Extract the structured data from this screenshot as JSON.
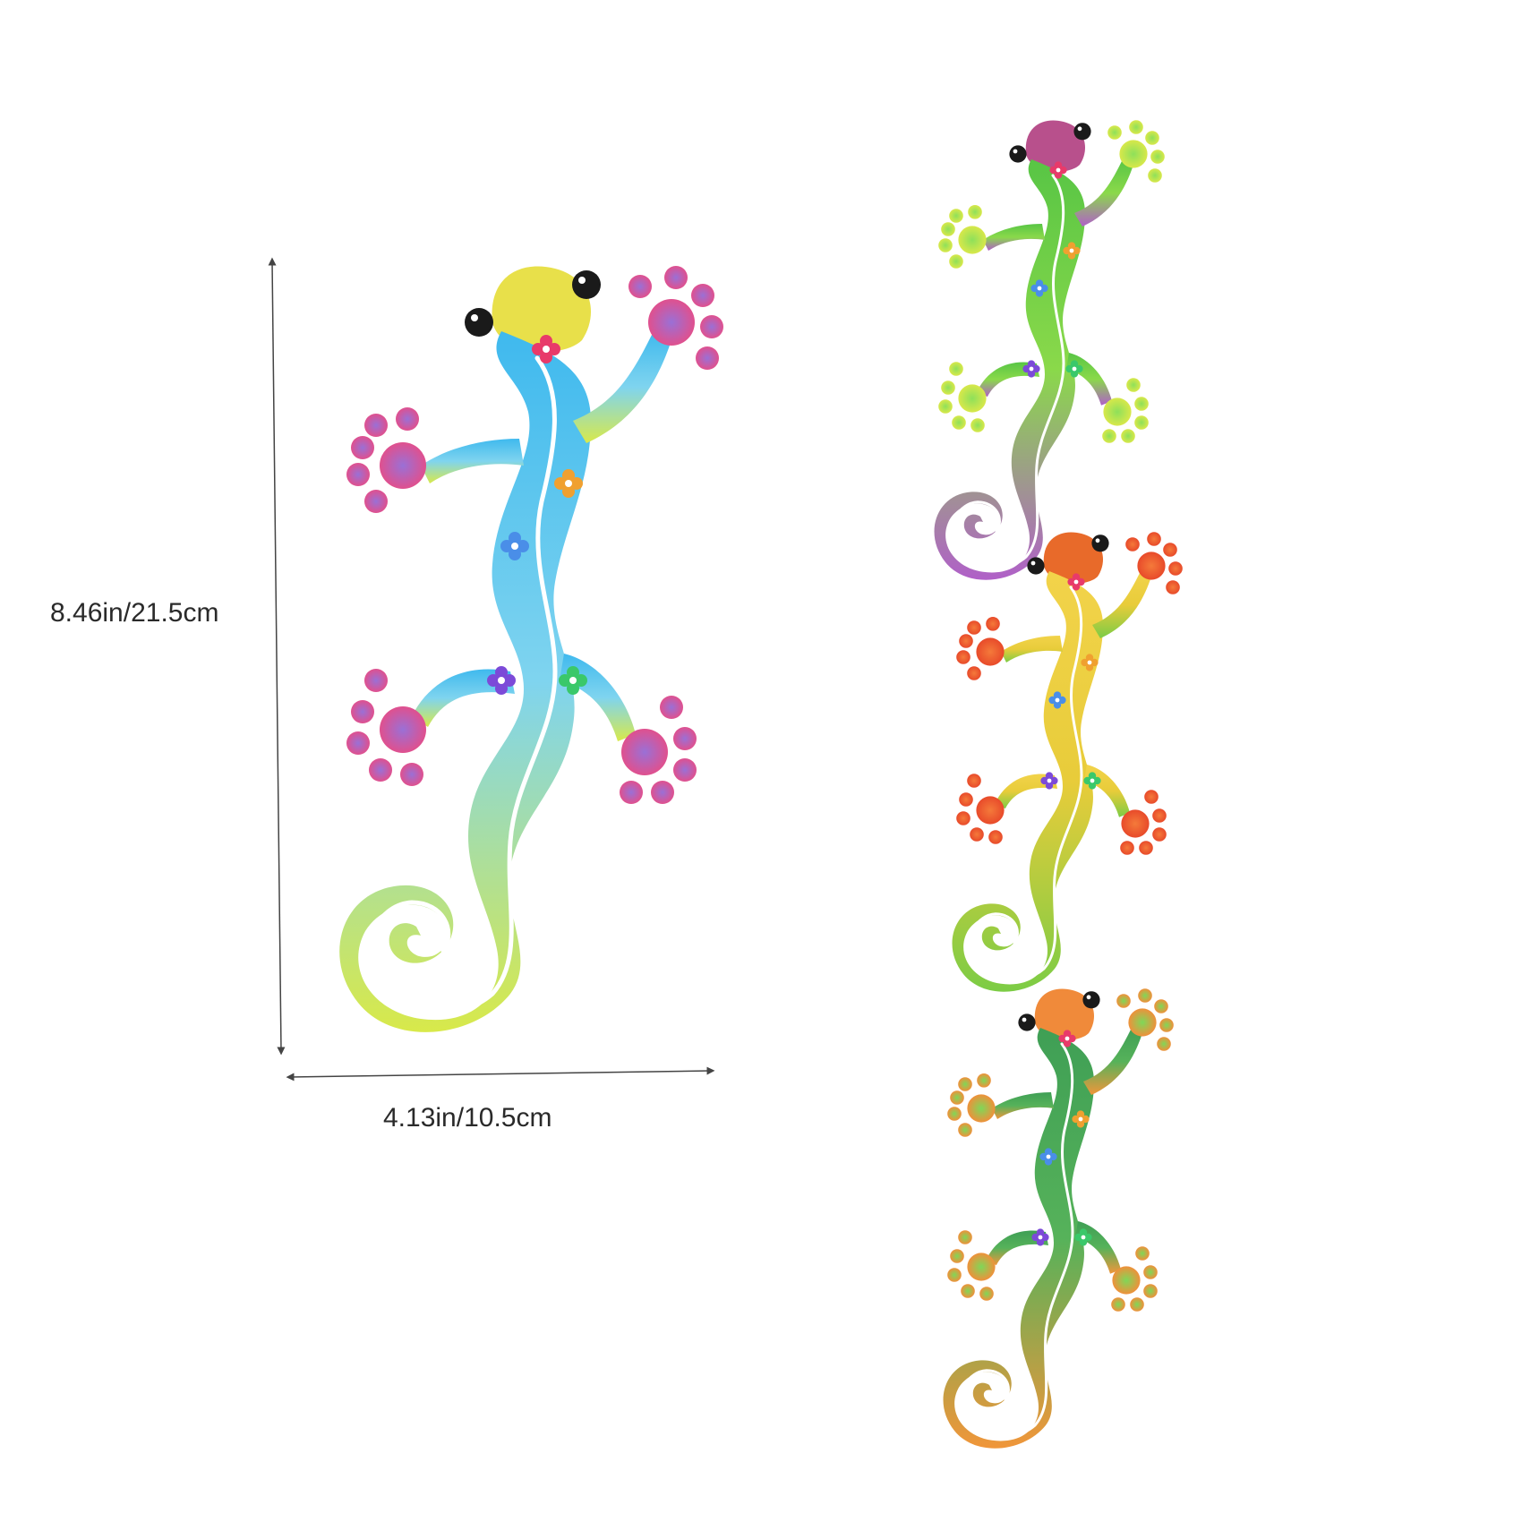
{
  "dimensions": {
    "height_label": "8.46in/21.5cm",
    "width_label": "4.13in/10.5cm"
  },
  "geckos": [
    {
      "id": "large",
      "body": [
        "#3fb9ee",
        "#7fd4ef",
        "#d8e94a"
      ],
      "head": "#e8e04a",
      "feet": [
        "#9a70d6",
        "#e0508e"
      ],
      "role": "main product with dimensions"
    },
    {
      "id": "green",
      "body": [
        "#58c545",
        "#8ad94a",
        "#b060c8"
      ],
      "head": "#b8508c",
      "feet": [
        "#8ee05a",
        "#d8e84a"
      ]
    },
    {
      "id": "yellow",
      "body": [
        "#f2d34a",
        "#e8cc3a",
        "#7ccc45"
      ],
      "head": "#e86a2a",
      "feet": [
        "#f47a3a",
        "#e84a2a"
      ]
    },
    {
      "id": "dark-green",
      "body": [
        "#3f9f55",
        "#56b25a",
        "#f0963a"
      ],
      "head": "#f08a3a",
      "feet": [
        "#7ed858",
        "#f0903a"
      ]
    }
  ],
  "colors": {
    "dimension_line": "#444444",
    "stripe": "#ffffff",
    "eye": "#1a1a1a"
  }
}
